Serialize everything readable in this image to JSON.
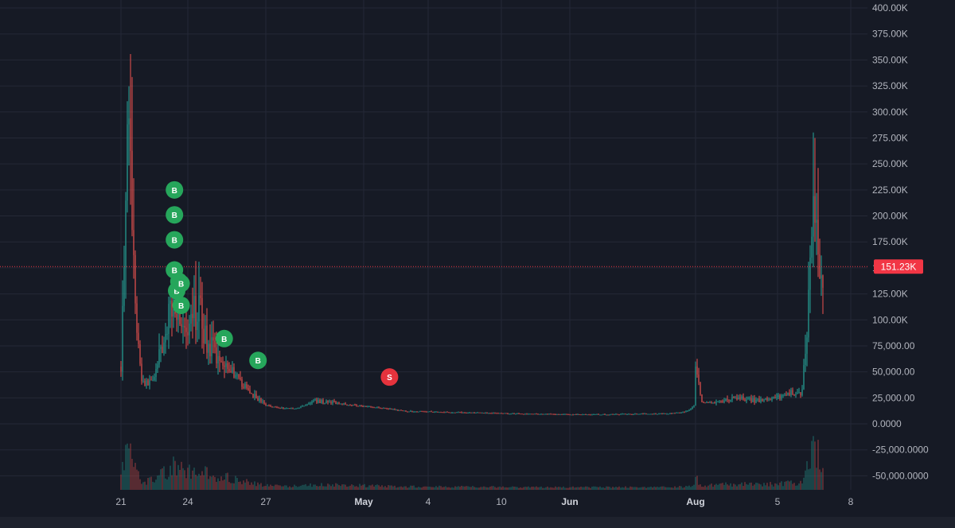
{
  "colors": {
    "background": "#161a25",
    "grid": "#242836",
    "up": "#26a69a",
    "down": "#ef5350",
    "buy_marker": "#26a65b",
    "sell_marker": "#e5333d",
    "price_line": "#f23645",
    "axis_text": "#b2b5be"
  },
  "chart_data": {
    "type": "candlestick",
    "title": "",
    "xlabel": "",
    "ylabel": "",
    "ylim": [
      -62000,
      405000
    ],
    "grid": true,
    "y_ticks": [
      {
        "value": 400000,
        "label": "400.00K"
      },
      {
        "value": 375000,
        "label": "375.00K"
      },
      {
        "value": 350000,
        "label": "350.00K"
      },
      {
        "value": 325000,
        "label": "325.00K"
      },
      {
        "value": 300000,
        "label": "300.00K"
      },
      {
        "value": 275000,
        "label": "275.00K"
      },
      {
        "value": 250000,
        "label": "250.00K"
      },
      {
        "value": 225000,
        "label": "225.00K"
      },
      {
        "value": 200000,
        "label": "200.00K"
      },
      {
        "value": 175000,
        "label": "175.00K"
      },
      {
        "value": 150000,
        "label": "150.00K"
      },
      {
        "value": 125000,
        "label": "125.00K"
      },
      {
        "value": 100000,
        "label": "100.00K"
      },
      {
        "value": 75000,
        "label": "75,000.00"
      },
      {
        "value": 50000,
        "label": "50,000.00"
      },
      {
        "value": 25000,
        "label": "25,000.00"
      },
      {
        "value": 0,
        "label": "0.0000"
      },
      {
        "value": -25000,
        "label": "-25,000.0000"
      },
      {
        "value": -50000,
        "label": "-50,000.0000"
      }
    ],
    "x_ticks": [
      {
        "t": 0,
        "label": "21",
        "bold": false
      },
      {
        "t": 3,
        "label": "24",
        "bold": false
      },
      {
        "t": 6,
        "label": "27",
        "bold": false
      },
      {
        "t": 10,
        "label": "May",
        "bold": true
      },
      {
        "t": 13,
        "label": "4",
        "bold": false
      },
      {
        "t": 19,
        "label": "10",
        "bold": false
      },
      {
        "t": 41,
        "label": "Jun",
        "bold": true
      },
      {
        "t": 102,
        "label": "Aug",
        "bold": true
      },
      {
        "t": 106,
        "label": "5",
        "bold": false
      },
      {
        "t": 109,
        "label": "8",
        "bold": false
      }
    ],
    "current_price": {
      "value": 151230,
      "label": "151.23K"
    },
    "markers": [
      {
        "type": "buy",
        "label": "B",
        "t": 2.4,
        "y": 225000
      },
      {
        "type": "buy",
        "label": "B",
        "t": 2.4,
        "y": 201000
      },
      {
        "type": "buy",
        "label": "B",
        "t": 2.4,
        "y": 177000
      },
      {
        "type": "buy",
        "label": "B",
        "t": 2.4,
        "y": 148000
      },
      {
        "type": "buy",
        "label": "B",
        "t": 2.5,
        "y": 128000
      },
      {
        "type": "buy",
        "label": "B",
        "t": 2.6,
        "y": 137000
      },
      {
        "type": "buy",
        "label": "B",
        "t": 2.7,
        "y": 135000
      },
      {
        "type": "buy",
        "label": "B",
        "t": 2.7,
        "y": 114000
      },
      {
        "type": "buy",
        "label": "B",
        "t": 4.4,
        "y": 82000
      },
      {
        "type": "buy",
        "label": "B",
        "t": 5.7,
        "y": 61000
      },
      {
        "type": "sell",
        "label": "S",
        "t": 11.2,
        "y": 45000
      }
    ],
    "price_keypoints": [
      [
        0.0,
        55000
      ],
      [
        0.12,
        160000
      ],
      [
        0.22,
        220000
      ],
      [
        0.32,
        380000
      ],
      [
        0.4,
        260000
      ],
      [
        0.55,
        160000
      ],
      [
        0.72,
        90000
      ],
      [
        0.9,
        45000
      ],
      [
        1.1,
        38000
      ],
      [
        1.4,
        42000
      ],
      [
        1.7,
        60000
      ],
      [
        2.0,
        85000
      ],
      [
        2.3,
        120000
      ],
      [
        2.55,
        115000
      ],
      [
        2.75,
        95000
      ],
      [
        3.0,
        75000
      ],
      [
        3.2,
        105000
      ],
      [
        3.45,
        110000
      ],
      [
        3.7,
        80000
      ],
      [
        4.0,
        68000
      ],
      [
        4.3,
        63000
      ],
      [
        4.6,
        55000
      ],
      [
        5.0,
        40000
      ],
      [
        5.5,
        28000
      ],
      [
        6.0,
        18000
      ],
      [
        6.6,
        15000
      ],
      [
        7.3,
        15000
      ],
      [
        8.0,
        22000
      ],
      [
        8.8,
        20000
      ],
      [
        9.6,
        18000
      ],
      [
        10.5,
        16000
      ],
      [
        12.0,
        12000
      ],
      [
        15.0,
        11000
      ],
      [
        20.0,
        10000
      ],
      [
        30.0,
        9500
      ],
      [
        40.0,
        9000
      ],
      [
        50.0,
        9000
      ],
      [
        60.0,
        9000
      ],
      [
        70.0,
        9500
      ],
      [
        80.0,
        9500
      ],
      [
        90.0,
        10000
      ],
      [
        96.0,
        11000
      ],
      [
        99.0,
        13000
      ],
      [
        101.8,
        18000
      ],
      [
        102.0,
        55000
      ],
      [
        102.3,
        20000
      ],
      [
        103.0,
        20000
      ],
      [
        104.0,
        25000
      ],
      [
        105.0,
        22000
      ],
      [
        106.0,
        25000
      ],
      [
        106.5,
        30000
      ],
      [
        107.0,
        30000
      ],
      [
        107.3,
        125000
      ],
      [
        107.55,
        235000
      ],
      [
        107.75,
        130000
      ],
      [
        107.9,
        151230
      ]
    ]
  }
}
